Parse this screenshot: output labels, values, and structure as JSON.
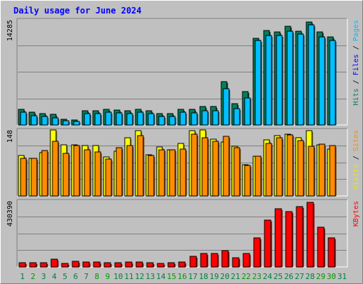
{
  "chart_data": {
    "type": "bar",
    "title": "Daily usage for June 2024",
    "categories": [
      "1",
      "2",
      "3",
      "4",
      "5",
      "6",
      "7",
      "8",
      "9",
      "10",
      "11",
      "12",
      "13",
      "14",
      "15",
      "16",
      "17",
      "18",
      "19",
      "20",
      "21",
      "22",
      "23",
      "24",
      "25",
      "26",
      "27",
      "28",
      "29",
      "30",
      "31"
    ],
    "weekend_days": [
      2,
      8,
      9,
      15,
      16,
      22,
      23,
      29,
      30
    ],
    "panels": [
      {
        "id": "hits",
        "max_label": "14285",
        "ymax": 14285,
        "legend": [
          "Pages",
          "Files",
          "Hits"
        ],
        "series": [
          {
            "name": "Hits",
            "color": "#00805c",
            "values": [
              2100,
              1700,
              1500,
              1400,
              800,
              700,
              1900,
              1900,
              2100,
              2000,
              1900,
              2100,
              1900,
              1500,
              1500,
              2100,
              2100,
              2500,
              2500,
              5900,
              2900,
              4500,
              11800,
              12800,
              12600,
              13400,
              12700,
              14000,
              12600,
              12000,
              null
            ]
          },
          {
            "name": "Files",
            "color": "#00c0ff",
            "values": [
              1700,
              1300,
              1200,
              1000,
              600,
              500,
              1500,
              1500,
              1700,
              1600,
              1500,
              1700,
              1500,
              1200,
              1200,
              1700,
              1600,
              1900,
              1900,
              4900,
              2200,
              3700,
              11500,
              12200,
              12200,
              12700,
              12400,
              13600,
              12000,
              11500,
              null
            ]
          },
          {
            "name": "Pages",
            "color": "#00c0ff",
            "values": []
          }
        ]
      },
      {
        "id": "visits",
        "max_label": "148",
        "ymax": 148,
        "legend": [
          "Sites",
          "Visits"
        ],
        "series": [
          {
            "name": "Visits",
            "color": "#ffff00",
            "values": [
              90,
              84,
              97,
              148,
              114,
              115,
              113,
              113,
              88,
              100,
              130,
              147,
              92,
              110,
              104,
              118,
              147,
              148,
              127,
              121,
              111,
              70,
              89,
              125,
              136,
              139,
              131,
              147,
              115,
              105,
              null
            ]
          },
          {
            "name": "Sites",
            "color": "#ff8c00",
            "values": [
              85,
              84,
              102,
              122,
              95,
              113,
              103,
              99,
              83,
              108,
              113,
              135,
              91,
              104,
              103,
              105,
              139,
              131,
              123,
              134,
              108,
              69,
              89,
              117,
              130,
              137,
              124,
              111,
              116,
              113,
              null
            ]
          }
        ]
      },
      {
        "id": "kbytes",
        "max_label": "430390",
        "ymax": 430390,
        "legend": [
          "KBytes"
        ],
        "series": [
          {
            "name": "KBytes",
            "color": "#ff0000",
            "values": [
              28000,
              28000,
              28000,
              50000,
              25000,
              35000,
              33000,
              33000,
              26000,
              28000,
              33000,
              32000,
              28000,
              22000,
              28000,
              33000,
              70000,
              88000,
              88000,
              108000,
              60000,
              88000,
              190000,
              305000,
              380000,
              360000,
              395000,
              420000,
              260000,
              190000,
              null
            ]
          }
        ]
      }
    ],
    "colors": {
      "title": "#0000ff",
      "weekday_label": "#008040",
      "weekend_label": "#009900",
      "pages": "#00c0ff",
      "files": "#0000ff",
      "hits": "#00805c",
      "sites": "#ff8c00",
      "visits": "#e8e800",
      "kbytes": "#ff0000",
      "panel_bg": "#c0c0c0",
      "grid": "#808080"
    }
  }
}
